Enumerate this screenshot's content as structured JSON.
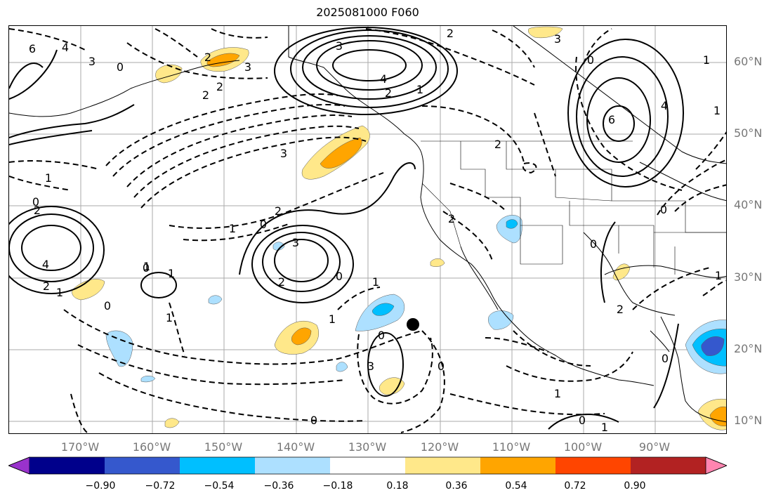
{
  "title": "2025081000 F060",
  "lat_labels": [
    "60°N",
    "50°N",
    "40°N",
    "30°N",
    "20°N",
    "10°N"
  ],
  "lon_labels": [
    "170°W",
    "160°W",
    "150°W",
    "140°W",
    "130°W",
    "120°W",
    "110°W",
    "100°W",
    "90°W"
  ],
  "colorbar": {
    "tick_labels": [
      "−0.90",
      "−0.72",
      "−0.54",
      "−0.36",
      "−0.18",
      "0.18",
      "0.36",
      "0.54",
      "0.72",
      "0.90"
    ],
    "colors": [
      "#9932CC",
      "#00008B",
      "#3558CD",
      "#00BFFF",
      "#ADE0FF",
      "#FFFFFF",
      "#FFE88A",
      "#FFA500",
      "#FF4500",
      "#B22222",
      "#FF85B0"
    ]
  },
  "contour_labels": [
    "6",
    "4",
    "3",
    "0",
    "2",
    "2",
    "3",
    "2",
    "3",
    "4",
    "2",
    "1",
    "3",
    "1",
    "2",
    "3",
    "4",
    "6",
    "1",
    "0",
    "2",
    "2",
    "1",
    "0",
    "1",
    "4",
    "2",
    "1",
    "3",
    "2",
    "0",
    "1",
    "2",
    "0",
    "0",
    "1",
    "2",
    "0",
    "1",
    "0",
    "1",
    "0",
    "1",
    "0",
    "3",
    "0",
    "2",
    "0",
    "0",
    "1",
    "1",
    "0",
    "1"
  ],
  "marker": {
    "lat": 23.5,
    "lon": -123.5
  }
}
